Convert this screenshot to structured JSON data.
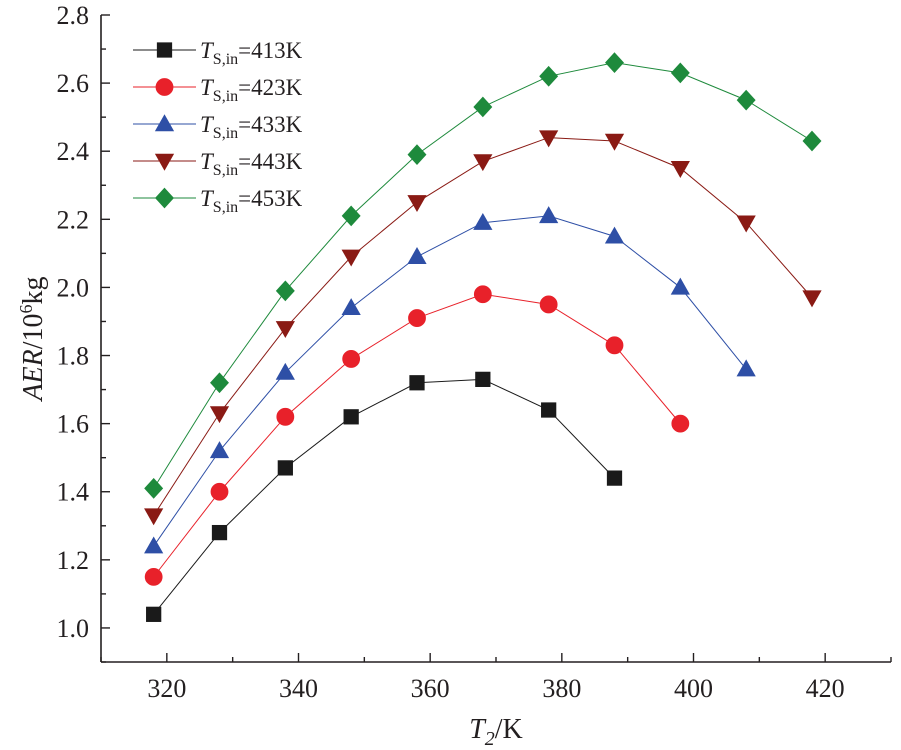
{
  "chart_data": {
    "type": "line",
    "title": "",
    "xlabel": {
      "var": "T",
      "sub": "2",
      "unit": "/K"
    },
    "ylabel": {
      "var": "AER",
      "unit": "/10",
      "sup": "6",
      "unit2": "kg"
    },
    "xlim": [
      310,
      430
    ],
    "ylim": [
      0.9,
      2.8
    ],
    "xticks": [
      320,
      340,
      360,
      380,
      400,
      420
    ],
    "yticks": [
      1.0,
      1.2,
      1.4,
      1.6,
      1.8,
      2.0,
      2.2,
      2.4,
      2.6,
      2.8
    ],
    "grid": false,
    "legend_position": "top-left",
    "series": [
      {
        "name": "T_S,in=413K",
        "legend": {
          "var": "T",
          "sub": "S,in",
          "rest": "=413K"
        },
        "marker": "square",
        "color": "#1a1a1a",
        "x": [
          318,
          328,
          338,
          348,
          358,
          368,
          378,
          388
        ],
        "values": [
          1.04,
          1.28,
          1.47,
          1.62,
          1.72,
          1.73,
          1.64,
          1.44
        ]
      },
      {
        "name": "T_S,in=423K",
        "legend": {
          "var": "T",
          "sub": "S,in",
          "rest": "=423K"
        },
        "marker": "circle",
        "color": "#e8212a",
        "x": [
          318,
          328,
          338,
          348,
          358,
          368,
          378,
          388,
          398
        ],
        "values": [
          1.15,
          1.4,
          1.62,
          1.79,
          1.91,
          1.98,
          1.95,
          1.83,
          1.6
        ]
      },
      {
        "name": "T_S,in=433K",
        "legend": {
          "var": "T",
          "sub": "S,in",
          "rest": "=433K"
        },
        "marker": "triangle-up",
        "color": "#2e4fa6",
        "x": [
          318,
          328,
          338,
          348,
          358,
          368,
          378,
          388,
          398,
          408
        ],
        "values": [
          1.24,
          1.52,
          1.75,
          1.94,
          2.09,
          2.19,
          2.21,
          2.15,
          2.0,
          1.76
        ]
      },
      {
        "name": "T_S,in=443K",
        "legend": {
          "var": "T",
          "sub": "S,in",
          "rest": "=443K"
        },
        "marker": "triangle-down",
        "color": "#8a1a14",
        "x": [
          318,
          328,
          338,
          348,
          358,
          368,
          378,
          388,
          398,
          408,
          418
        ],
        "values": [
          1.33,
          1.63,
          1.88,
          2.09,
          2.25,
          2.37,
          2.44,
          2.43,
          2.35,
          2.19,
          1.97
        ]
      },
      {
        "name": "T_S,in=453K",
        "legend": {
          "var": "T",
          "sub": "S,in",
          "rest": "=453K"
        },
        "marker": "diamond",
        "color": "#1e8a3c",
        "x": [
          318,
          328,
          338,
          348,
          358,
          368,
          378,
          388,
          398,
          408,
          418
        ],
        "values": [
          1.41,
          1.72,
          1.99,
          2.21,
          2.39,
          2.53,
          2.62,
          2.66,
          2.63,
          2.55,
          2.43
        ]
      }
    ]
  }
}
